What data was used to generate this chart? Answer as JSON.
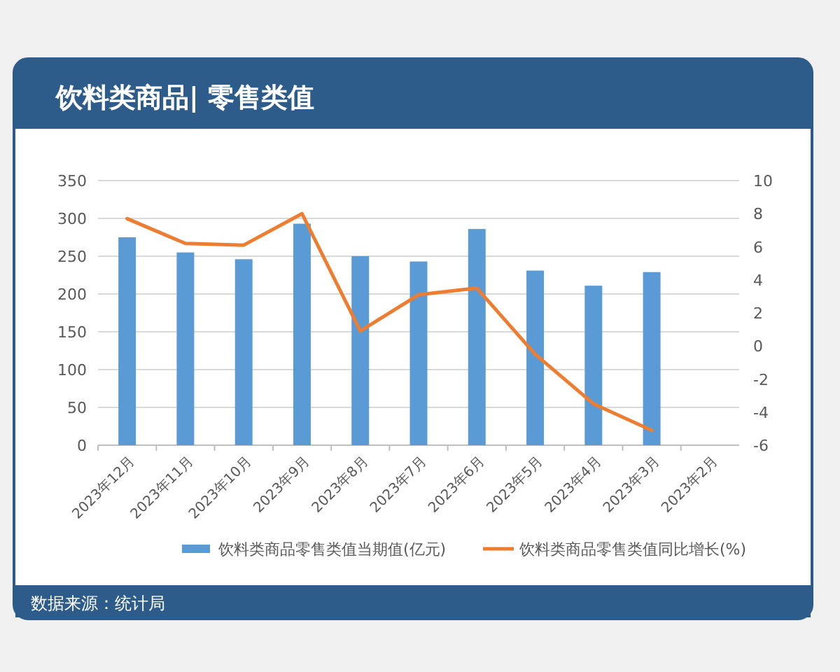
{
  "chart_data": {
    "type": "bar",
    "title": "饮料类商品| 零售类值",
    "categories": [
      "2023年12月",
      "2023年11月",
      "2023年10月",
      "2023年9月",
      "2023年8月",
      "2023年7月",
      "2023年6月",
      "2023年5月",
      "2023年4月",
      "2023年3月",
      "2023年2月"
    ],
    "series": [
      {
        "name": "饮料类商品零售类值当期值(亿元)",
        "color": "#5b9bd5",
        "values": [
          275,
          255,
          246,
          293,
          250,
          243,
          286,
          231,
          211,
          229,
          null
        ]
      },
      {
        "name": "饮料类商品零售类值同比增长(%)",
        "color": "#ed7d31",
        "type": "line",
        "axis": "y2",
        "marker": "none",
        "values": [
          7.7,
          6.2,
          6.1,
          8.0,
          0.9,
          3.1,
          3.5,
          -0.5,
          -3.5,
          -5.1,
          null
        ]
      }
    ],
    "ylim": [
      0,
      350
    ],
    "yticks": [
      0,
      50,
      100,
      150,
      200,
      250,
      300,
      350
    ],
    "y2lim": [
      -6,
      10
    ],
    "y2ticks": [
      -6,
      -4,
      -2,
      0,
      2,
      4,
      6,
      8,
      10
    ],
    "grid": "y",
    "legend": "bottom",
    "annotations": [
      "数据来源：统计局"
    ]
  }
}
